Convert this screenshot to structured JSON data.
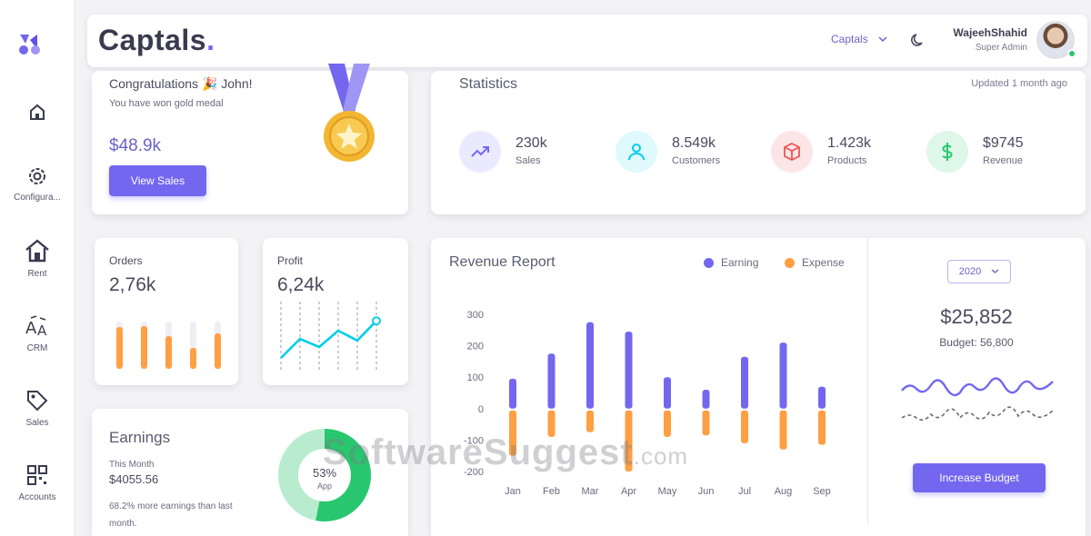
{
  "sidebar": {
    "items": [
      {
        "label": "",
        "icon": "home-icon"
      },
      {
        "label": "Configura...",
        "icon": "gear-icon"
      },
      {
        "label": "Rent",
        "icon": "house-icon"
      },
      {
        "label": "CRM",
        "icon": "translate-icon"
      },
      {
        "label": "Sales",
        "icon": "tag-icon"
      },
      {
        "label": "Accounts",
        "icon": "grid-icon"
      }
    ]
  },
  "header": {
    "logo": "Captals",
    "logo_dot": ".",
    "company_select": "Captals",
    "user_name": "WajeehShahid",
    "user_role": "Super Admin"
  },
  "congrats": {
    "title": "Congratulations 🎉 John!",
    "subtitle": "You have won gold medal",
    "amount": "$48.9k",
    "button": "View Sales"
  },
  "statistics": {
    "title": "Statistics",
    "updated": "Updated 1 month ago",
    "items": [
      {
        "value": "230k",
        "label": "Sales",
        "icon": "trending-up-icon",
        "color": "#7367f0"
      },
      {
        "value": "8.549k",
        "label": "Customers",
        "icon": "user-icon",
        "color": "#00cfe8"
      },
      {
        "value": "1.423k",
        "label": "Products",
        "icon": "box-icon",
        "color": "#ea5455"
      },
      {
        "value": "$9745",
        "label": "Revenue",
        "icon": "dollar-icon",
        "color": "#28c76f"
      }
    ]
  },
  "orders": {
    "label": "Orders",
    "value": "2,76k",
    "bars": [
      0.88,
      0.9,
      0.7,
      0.45,
      0.75
    ]
  },
  "profit": {
    "label": "Profit",
    "value": "6,24k",
    "points": [
      10,
      45,
      30,
      60,
      42,
      78
    ]
  },
  "revenue_report": {
    "title": "Revenue Report",
    "legend_earning": "Earning",
    "legend_expense": "Expense",
    "year": "2020",
    "budget_amount": "$25,852",
    "budget_label": "Budget: 56,800",
    "button": "Increase Budget"
  },
  "chart_data": {
    "type": "bar",
    "title": "Revenue Report",
    "categories": [
      "Jan",
      "Feb",
      "Mar",
      "Apr",
      "May",
      "Jun",
      "Jul",
      "Aug",
      "Sep"
    ],
    "series": [
      {
        "name": "Earning",
        "color": "#7367f0",
        "values": [
          95,
          175,
          275,
          245,
          100,
          60,
          165,
          210,
          70
        ]
      },
      {
        "name": "Expense",
        "color": "#ff9f43",
        "values": [
          -150,
          -90,
          -75,
          -200,
          -90,
          -85,
          -110,
          -130,
          -115
        ]
      }
    ],
    "yticks": [
      "300",
      "200",
      "100",
      "0",
      "-100",
      "-200"
    ],
    "ylim": [
      -200,
      300
    ]
  },
  "earnings": {
    "title": "Earnings",
    "period": "This Month",
    "amount": "$4055.56",
    "note": "68.2% more earnings than last month.",
    "donut_pct": "53%",
    "donut_label": "App",
    "donut_value": 53
  },
  "watermark": "SoftwareSuggest",
  "watermark_suffix": ".com",
  "colors": {
    "primary": "#7367f0",
    "warning": "#ff9f43",
    "success": "#28c76f"
  }
}
